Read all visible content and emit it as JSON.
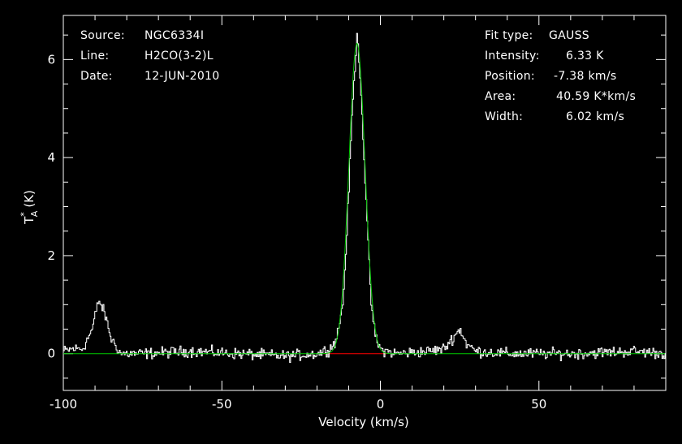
{
  "chart_data": {
    "type": "line",
    "xlabel": "Velocity (km/s)",
    "ylabel_main": "T",
    "ylabel_sup": "*",
    "ylabel_sub": "A",
    "ylabel_unit": "(K)",
    "xlim": [
      -100,
      90
    ],
    "ylim": [
      -0.75,
      6.9
    ],
    "xticks": [
      -100,
      -50,
      0,
      50
    ],
    "xtick_labels": [
      "-100",
      "-50",
      "0",
      "50"
    ],
    "yticks": [
      0,
      2,
      4,
      6
    ],
    "ytick_labels": [
      "0",
      "2",
      "4",
      "6"
    ],
    "series": [
      {
        "role": "spectrum",
        "color": "#ffffff",
        "x": [
          -100,
          -97,
          -94,
          -91,
          -89,
          -87,
          -85,
          -82,
          -75,
          -60,
          -45,
          -30,
          -20,
          -16,
          -14,
          -12,
          -11,
          -10,
          -9,
          -8,
          -7.4,
          -7,
          -6,
          -5,
          -4,
          -3,
          -2,
          -1,
          0,
          5,
          15,
          20,
          23,
          25,
          27,
          30,
          40,
          60,
          80,
          90
        ],
        "y": [
          0.05,
          0.1,
          0.1,
          0.5,
          1.1,
          0.8,
          0.3,
          0.0,
          0.0,
          0.05,
          0.0,
          -0.05,
          0.0,
          0.1,
          0.3,
          1.0,
          2.1,
          3.5,
          5.0,
          6.0,
          6.55,
          6.2,
          5.0,
          3.6,
          2.2,
          1.0,
          0.45,
          0.2,
          0.08,
          0.0,
          0.05,
          0.1,
          0.35,
          0.5,
          0.2,
          0.05,
          0.0,
          0.0,
          0.05,
          0.0
        ]
      },
      {
        "role": "gauss-fit",
        "color": "#00cc00",
        "fit": {
          "amplitude": 6.33,
          "center": -7.38,
          "fwhm": 6.02
        }
      },
      {
        "role": "fit-window",
        "color": "#ff0000",
        "x": [
          -18,
          2
        ],
        "y": [
          0,
          0
        ]
      }
    ],
    "noise_rms": 0.07
  },
  "info_left": [
    {
      "key": "Source:",
      "value": "NGC6334I"
    },
    {
      "key": "Line:",
      "value": "H2CO(3-2)L"
    },
    {
      "key": "Date:",
      "value": "12-JUN-2010"
    }
  ],
  "info_right": [
    {
      "key": "Fit type:",
      "value": "GAUSS"
    },
    {
      "key": "Intensity:",
      "value": "6.33 K"
    },
    {
      "key": "Position:",
      "value": "-7.38 km/s"
    },
    {
      "key": "Area:",
      "value": "40.59 K*km/s"
    },
    {
      "key": "Width:",
      "value": "6.02 km/s"
    }
  ]
}
